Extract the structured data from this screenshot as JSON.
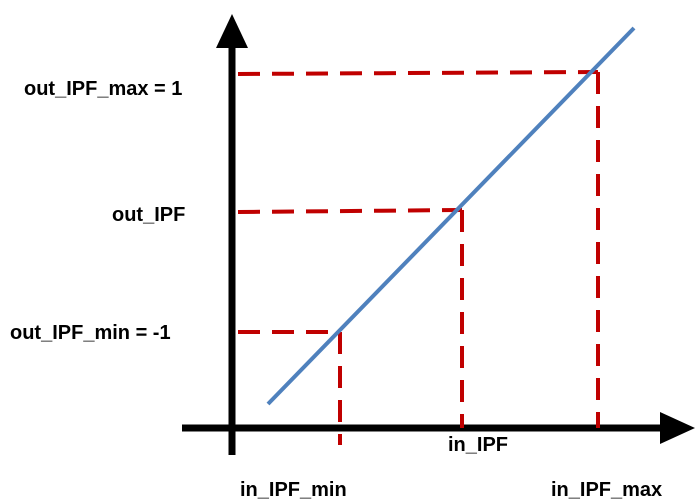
{
  "labels": {
    "out_max": "out_IPF_max = 1",
    "out_mid": "out_IPF",
    "out_min": "out_IPF_min = -1",
    "in_min": "in_IPF_min",
    "in_mid": "in_IPF",
    "in_max": "in_IPF_max"
  },
  "colors": {
    "axis": "#000000",
    "line": "#4F81BD",
    "guides": "#C00000",
    "text": "#000000"
  }
}
